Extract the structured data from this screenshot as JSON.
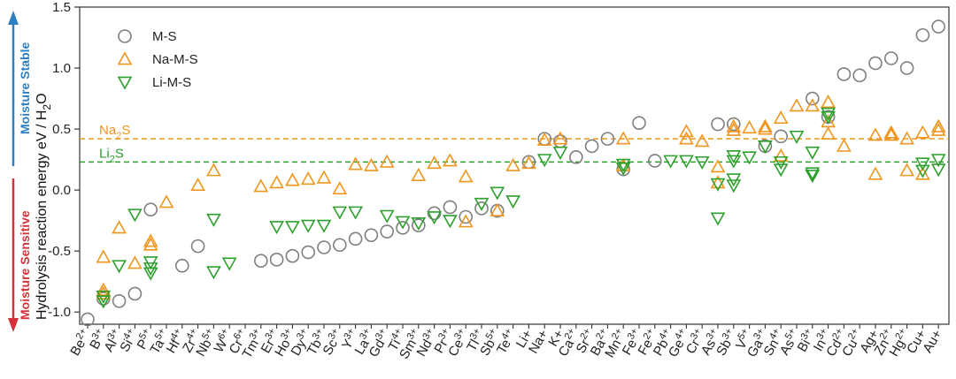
{
  "chart_data": {
    "type": "scatter",
    "xlabel": "",
    "ylabel": "Hydrolysis reaction energy eV / H₂O",
    "ylim": [
      -1.1,
      1.5
    ],
    "yticks": [
      "-1.0",
      "-0.5",
      "0.0",
      "0.5",
      "1.0",
      "1.5"
    ],
    "ytick_values": [
      -1.0,
      -0.5,
      0.0,
      0.5,
      1.0,
      1.5
    ],
    "grid": false,
    "legend_position": "top-left",
    "stable_label": "Moisture Stable",
    "sensitive_label": "Moisture Sensitive",
    "stable_color": "#2d7fc1",
    "sensitive_color": "#d6313b",
    "categories": [
      "Be2+",
      "B3+",
      "Al3+",
      "Si4+",
      "P5+",
      "Ta5+",
      "Hf4+",
      "Zr4+",
      "Nb5+",
      "W6+",
      "Cr6+",
      "Tm3+",
      "Er3+",
      "Ho3+",
      "Dy3+",
      "Tb3+",
      "Sc3+",
      "Y3+",
      "La3+",
      "Gd3+",
      "Ti4+",
      "Sm3+",
      "Nd3+",
      "Pr3+",
      "Ce3+",
      "Tl3+",
      "Sb5+",
      "Te4+",
      "Li+",
      "Na+",
      "K+",
      "Ca2+",
      "Sr2+",
      "Ba2+",
      "Mn2+",
      "Fe3+",
      "Fe2+",
      "Pb4+",
      "Ge4+",
      "Cr3+",
      "As3+",
      "Sb3+",
      "V5+",
      "Ga3+",
      "Sn4+",
      "As5+",
      "Bi3+",
      "In3+",
      "Cd2+",
      "Cu2+",
      "Ag+",
      "Zn2+",
      "Hg2+",
      "Cu+",
      "Au+"
    ],
    "tick_labels": [
      {
        "base": "Be",
        "sup": "2+"
      },
      {
        "base": "B",
        "sup": "3+"
      },
      {
        "base": "Al",
        "sup": "3+"
      },
      {
        "base": "Si",
        "sup": "4+"
      },
      {
        "base": "P",
        "sup": "5+"
      },
      {
        "base": "Ta",
        "sup": "5+"
      },
      {
        "base": "Hf",
        "sup": "4+"
      },
      {
        "base": "Zr",
        "sup": "4+"
      },
      {
        "base": "Nb",
        "sup": "5+"
      },
      {
        "base": "W",
        "sup": "6+"
      },
      {
        "base": "Cr",
        "sup": "6+"
      },
      {
        "base": "Tm",
        "sup": "3+"
      },
      {
        "base": "Er",
        "sup": "3+"
      },
      {
        "base": "Ho",
        "sup": "3+"
      },
      {
        "base": "Dy",
        "sup": "3+"
      },
      {
        "base": "Tb",
        "sup": "3+"
      },
      {
        "base": "Sc",
        "sup": "3+"
      },
      {
        "base": "Y",
        "sup": "3+"
      },
      {
        "base": "La",
        "sup": "3+"
      },
      {
        "base": "Gd",
        "sup": "3+"
      },
      {
        "base": "Ti",
        "sup": "4+"
      },
      {
        "base": "Sm",
        "sup": "3+"
      },
      {
        "base": "Nd",
        "sup": "3+"
      },
      {
        "base": "Pr",
        "sup": "3+"
      },
      {
        "base": "Ce",
        "sup": "3+"
      },
      {
        "base": "Tl",
        "sup": "3+"
      },
      {
        "base": "Sb",
        "sup": "5+"
      },
      {
        "base": "Te",
        "sup": "4+"
      },
      {
        "base": "Li+",
        "sup": ""
      },
      {
        "base": "Na+",
        "sup": ""
      },
      {
        "base": "K+",
        "sup": ""
      },
      {
        "base": "Ca",
        "sup": "2+"
      },
      {
        "base": "Sr",
        "sup": "2+"
      },
      {
        "base": "Ba",
        "sup": "2+"
      },
      {
        "base": "Mn",
        "sup": "2+"
      },
      {
        "base": "Fe",
        "sup": "3+"
      },
      {
        "base": "Fe",
        "sup": "2+"
      },
      {
        "base": "Pb",
        "sup": "4+"
      },
      {
        "base": "Ge",
        "sup": "4+"
      },
      {
        "base": "Cr",
        "sup": "3+"
      },
      {
        "base": "As",
        "sup": "3+"
      },
      {
        "base": "Sb",
        "sup": "3+"
      },
      {
        "base": "V",
        "sup": "5+"
      },
      {
        "base": "Ga",
        "sup": "3+"
      },
      {
        "base": "Sn",
        "sup": "4+"
      },
      {
        "base": "As",
        "sup": "5+"
      },
      {
        "base": "Bi",
        "sup": "3+"
      },
      {
        "base": "In",
        "sup": "3+"
      },
      {
        "base": "Cd",
        "sup": "2+"
      },
      {
        "base": "Cu",
        "sup": "2+"
      },
      {
        "base": "Ag+",
        "sup": ""
      },
      {
        "base": "Zn",
        "sup": "2+"
      },
      {
        "base": "Hg",
        "sup": "2+"
      },
      {
        "base": "Cu+",
        "sup": ""
      },
      {
        "base": "Au+",
        "sup": ""
      }
    ],
    "reference_lines": [
      {
        "label_base": "Na",
        "label_sub": "2",
        "label_tail": "S",
        "y": 0.42,
        "color": "#f0961e"
      },
      {
        "label_base": "Li",
        "label_sub": "2",
        "label_tail": "S",
        "y": 0.23,
        "color": "#2ca02c"
      }
    ],
    "series": [
      {
        "name": "M-S",
        "marker": "circle",
        "color": "#7f7f7f",
        "points": [
          [
            0,
            -1.06
          ],
          [
            1,
            -0.89
          ],
          [
            2,
            -0.91
          ],
          [
            3,
            -0.85
          ],
          [
            4,
            -0.16
          ],
          [
            6,
            -0.62
          ],
          [
            7,
            -0.46
          ],
          [
            11,
            -0.58
          ],
          [
            12,
            -0.57
          ],
          [
            13,
            -0.54
          ],
          [
            14,
            -0.51
          ],
          [
            15,
            -0.47
          ],
          [
            16,
            -0.45
          ],
          [
            17,
            -0.4
          ],
          [
            18,
            -0.37
          ],
          [
            19,
            -0.34
          ],
          [
            20,
            -0.31
          ],
          [
            21,
            -0.29
          ],
          [
            22,
            -0.19
          ],
          [
            23,
            -0.14
          ],
          [
            24,
            -0.22
          ],
          [
            25,
            -0.15
          ],
          [
            26,
            -0.17
          ],
          [
            28,
            0.23
          ],
          [
            29,
            0.42
          ],
          [
            30,
            0.4
          ],
          [
            31,
            0.27
          ],
          [
            32,
            0.36
          ],
          [
            33,
            0.42
          ],
          [
            34,
            0.17
          ],
          [
            35,
            0.55
          ],
          [
            36,
            0.24
          ],
          [
            40,
            0.54
          ],
          [
            41,
            0.54
          ],
          [
            43,
            0.36
          ],
          [
            44,
            0.44
          ],
          [
            46,
            0.75
          ],
          [
            47,
            0.6
          ],
          [
            48,
            0.95
          ],
          [
            49,
            0.94
          ],
          [
            50,
            1.04
          ],
          [
            51,
            1.08
          ],
          [
            52,
            1.0
          ],
          [
            53,
            1.27
          ],
          [
            54,
            1.34
          ]
        ]
      },
      {
        "name": "Na-M-S",
        "marker": "triangle-up",
        "color": "#f0961e",
        "points": [
          [
            1,
            -0.82
          ],
          [
            1,
            -0.85
          ],
          [
            1,
            -0.55
          ],
          [
            2,
            -0.31
          ],
          [
            3,
            -0.6
          ],
          [
            4,
            -0.42
          ],
          [
            4,
            -0.45
          ],
          [
            5,
            -0.1
          ],
          [
            7,
            0.04
          ],
          [
            8,
            0.16
          ],
          [
            11,
            0.03
          ],
          [
            12,
            0.06
          ],
          [
            13,
            0.08
          ],
          [
            14,
            0.09
          ],
          [
            15,
            0.1
          ],
          [
            16,
            0.01
          ],
          [
            17,
            0.21
          ],
          [
            18,
            0.2
          ],
          [
            19,
            0.23
          ],
          [
            21,
            0.12
          ],
          [
            22,
            0.22
          ],
          [
            23,
            0.24
          ],
          [
            24,
            0.11
          ],
          [
            24,
            -0.26
          ],
          [
            26,
            -0.17
          ],
          [
            27,
            0.2
          ],
          [
            28,
            0.22
          ],
          [
            29,
            0.41
          ],
          [
            30,
            0.42
          ],
          [
            34,
            0.42
          ],
          [
            34,
            0.2
          ],
          [
            38,
            0.48
          ],
          [
            38,
            0.42
          ],
          [
            39,
            0.4
          ],
          [
            40,
            0.19
          ],
          [
            40,
            0.06
          ],
          [
            41,
            0.52
          ],
          [
            41,
            0.49
          ],
          [
            42,
            0.51
          ],
          [
            43,
            0.52
          ],
          [
            43,
            0.5
          ],
          [
            44,
            0.59
          ],
          [
            44,
            0.28
          ],
          [
            45,
            0.69
          ],
          [
            46,
            0.69
          ],
          [
            47,
            0.72
          ],
          [
            47,
            0.56
          ],
          [
            47,
            0.46
          ],
          [
            48,
            0.36
          ],
          [
            50,
            0.45
          ],
          [
            50,
            0.13
          ],
          [
            51,
            0.47
          ],
          [
            51,
            0.45
          ],
          [
            52,
            0.42
          ],
          [
            52,
            0.16
          ],
          [
            53,
            0.47
          ],
          [
            53,
            0.13
          ],
          [
            54,
            0.52
          ],
          [
            54,
            0.49
          ]
        ]
      },
      {
        "name": "Li-M-S",
        "marker": "triangle-down",
        "color": "#2ca02c",
        "points": [
          [
            1,
            -0.87
          ],
          [
            1,
            -0.91
          ],
          [
            2,
            -0.62
          ],
          [
            3,
            -0.2
          ],
          [
            4,
            -0.59
          ],
          [
            4,
            -0.64
          ],
          [
            4,
            -0.68
          ],
          [
            8,
            -0.24
          ],
          [
            8,
            -0.67
          ],
          [
            9,
            -0.6
          ],
          [
            12,
            -0.3
          ],
          [
            13,
            -0.3
          ],
          [
            14,
            -0.29
          ],
          [
            15,
            -0.29
          ],
          [
            16,
            -0.18
          ],
          [
            17,
            -0.18
          ],
          [
            19,
            -0.21
          ],
          [
            20,
            -0.26
          ],
          [
            21,
            -0.27
          ],
          [
            22,
            -0.22
          ],
          [
            23,
            -0.25
          ],
          [
            25,
            -0.11
          ],
          [
            26,
            -0.02
          ],
          [
            27,
            -0.09
          ],
          [
            29,
            0.25
          ],
          [
            30,
            0.31
          ],
          [
            34,
            0.21
          ],
          [
            34,
            0.18
          ],
          [
            37,
            0.24
          ],
          [
            38,
            0.24
          ],
          [
            39,
            0.23
          ],
          [
            40,
            0.05
          ],
          [
            40,
            -0.23
          ],
          [
            41,
            0.28
          ],
          [
            41,
            0.24
          ],
          [
            41,
            0.09
          ],
          [
            41,
            0.04
          ],
          [
            42,
            0.27
          ],
          [
            43,
            0.36
          ],
          [
            44,
            0.23
          ],
          [
            44,
            0.17
          ],
          [
            45,
            0.44
          ],
          [
            46,
            0.31
          ],
          [
            46,
            0.14
          ],
          [
            46,
            0.12
          ],
          [
            47,
            0.63
          ],
          [
            47,
            0.6
          ],
          [
            53,
            0.22
          ],
          [
            53,
            0.16
          ],
          [
            54,
            0.25
          ],
          [
            54,
            0.17
          ]
        ]
      }
    ]
  }
}
